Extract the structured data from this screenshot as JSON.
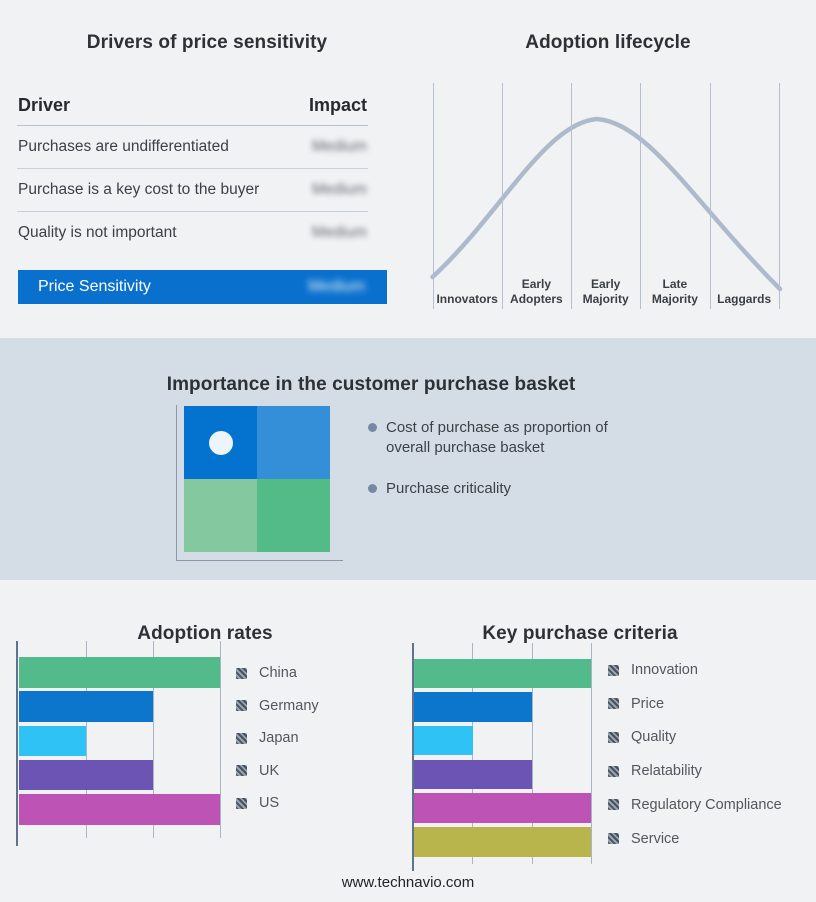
{
  "colors": {
    "page_bg": "#f1f2f4",
    "band_bg": "#d4dde6",
    "gridline": "#a9b4c4",
    "axis": "#5e7390",
    "table_highlight": "#0a70cd",
    "curve": "#adbacc"
  },
  "icons": {
    "legend_swatch": "hatched-square",
    "bullet": "filled-circle",
    "quadrant_marker": "white-dot"
  },
  "drivers_table": {
    "title": "Drivers of price sensitivity",
    "columns": [
      "Driver",
      "Impact"
    ],
    "rows": [
      {
        "driver": "Purchases are undifferentiated",
        "impact": "Medium"
      },
      {
        "driver": "Purchase is a key cost to the buyer",
        "impact": "Medium"
      },
      {
        "driver": "Quality is not important",
        "impact": "Medium"
      }
    ],
    "highlight_row": {
      "driver": "Price Sensitivity",
      "impact": "Medium"
    },
    "impact_values_blurred": true
  },
  "purchase_basket": {
    "title": "Importance in the customer purchase basket",
    "bullets": [
      "Cost of purchase as proportion of overall purchase basket",
      "Purchase criticality"
    ],
    "quadrant_colors": {
      "top_left": "#0473cf",
      "top_right": "#348ed8",
      "bottom_left": "#84c8a0",
      "bottom_right": "#52bb87"
    },
    "marker_position": "top-left"
  },
  "chart_data": [
    {
      "type": "line",
      "style": "bell-curve",
      "title": "Adoption lifecycle",
      "stages": [
        "Innovators",
        "Early Adopters",
        "Early Majority",
        "Late Majority",
        "Laggards"
      ],
      "peak_stage": "Early Majority",
      "line_color": "#adbacc",
      "grid": "vertical-only",
      "axis_labels_shown": false
    },
    {
      "type": "bar",
      "orientation": "horizontal",
      "title": "Adoption rates",
      "categories": [
        "China",
        "Germany",
        "Japan",
        "UK",
        "US"
      ],
      "values": [
        3,
        2,
        1,
        2,
        3
      ],
      "xlim": [
        0,
        3
      ],
      "gridlines_at": [
        1,
        2,
        3
      ],
      "bar_colors": [
        "#53bb8b",
        "#0b76cc",
        "#2fc2f4",
        "#6c54b5",
        "#bd53b4"
      ],
      "legend_position": "right",
      "legend_swatch_style": "hatched",
      "value_labels_shown": false
    },
    {
      "type": "bar",
      "orientation": "horizontal",
      "title": "Key purchase criteria",
      "categories": [
        "Innovation",
        "Price",
        "Quality",
        "Relatability",
        "Regulatory Compliance",
        "Service"
      ],
      "values": [
        3,
        2,
        1,
        2,
        3,
        3
      ],
      "xlim": [
        0,
        3
      ],
      "gridlines_at": [
        1,
        2,
        3
      ],
      "bar_colors": [
        "#53bb8b",
        "#0b76cc",
        "#2fc2f4",
        "#6c54b5",
        "#bd53b4",
        "#b9b54d"
      ],
      "legend_position": "right",
      "legend_swatch_style": "hatched",
      "value_labels_shown": false
    }
  ],
  "footer": {
    "text": "www.technavio.com"
  }
}
